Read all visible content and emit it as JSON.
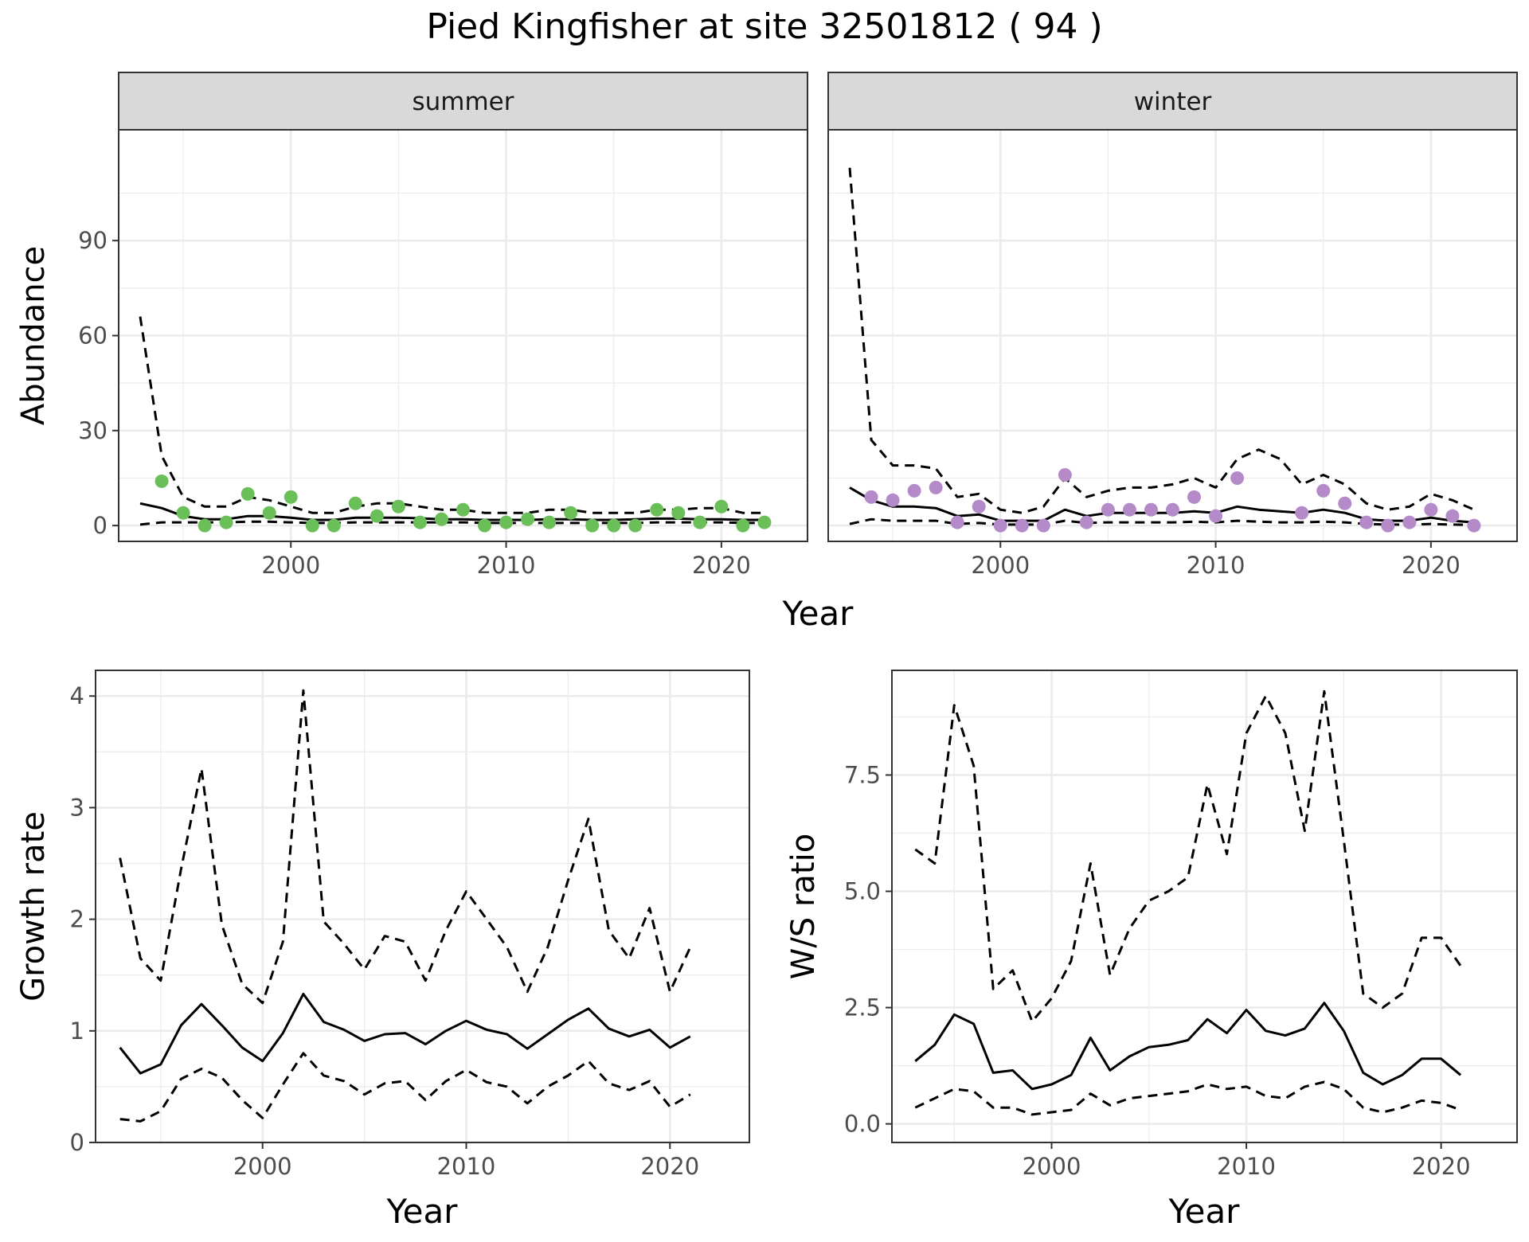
{
  "title": "Pied Kingfisher at site 32501812 ( 94 )",
  "colors": {
    "summer_points": "#6bbf59",
    "winter_points": "#b48ac9",
    "line": "#000000",
    "strip_bg": "#d9d9d9",
    "grid": "#ebebeb"
  },
  "chart_data": [
    {
      "type": "scatter",
      "facet": "summer",
      "xlabel": "Year",
      "ylabel": "Abundance",
      "xlim": [
        1992,
        2024
      ],
      "ylim": [
        -5,
        125
      ],
      "xticks": [
        2000,
        2010,
        2020
      ],
      "yticks": [
        0,
        30,
        60,
        90
      ],
      "grid": true,
      "points": {
        "x": [
          1994,
          1995,
          1996,
          1997,
          1998,
          1999,
          2000,
          2001,
          2002,
          2003,
          2004,
          2005,
          2006,
          2007,
          2008,
          2009,
          2010,
          2011,
          2012,
          2013,
          2014,
          2015,
          2016,
          2017,
          2018,
          2019,
          2020,
          2021,
          2022
        ],
        "y": [
          14,
          4,
          0,
          1,
          10,
          4,
          9,
          0,
          0,
          7,
          3,
          6,
          1,
          2,
          5,
          0,
          1,
          2,
          1,
          4,
          0,
          0,
          0,
          5,
          4,
          1,
          6,
          0,
          1
        ]
      },
      "series": [
        {
          "style": "solid",
          "x": [
            1993,
            1994,
            1995,
            1996,
            1997,
            1998,
            1999,
            2000,
            2001,
            2002,
            2003,
            2004,
            2005,
            2006,
            2007,
            2008,
            2009,
            2010,
            2011,
            2012,
            2013,
            2014,
            2015,
            2016,
            2017,
            2018,
            2019,
            2020,
            2021,
            2022
          ],
          "y": [
            7,
            5.5,
            3,
            2,
            2,
            3,
            3,
            2.5,
            1.8,
            1.8,
            2.5,
            2.5,
            2.5,
            2.3,
            2,
            2,
            1.8,
            1.8,
            1.8,
            2,
            2,
            1.8,
            1.8,
            2,
            2.2,
            2.2,
            2,
            2,
            1.8,
            1.8
          ]
        },
        {
          "style": "dashed",
          "x": [
            1993,
            1994,
            1995,
            1996,
            1997,
            1998,
            1999,
            2000,
            2001,
            2002,
            2003,
            2004,
            2005,
            2006,
            2007,
            2008,
            2009,
            2010,
            2011,
            2012,
            2013,
            2014,
            2015,
            2016,
            2017,
            2018,
            2019,
            2020,
            2021,
            2022
          ],
          "y": [
            66,
            22,
            9,
            6,
            6,
            9,
            8,
            6,
            4,
            4,
            6,
            7,
            7,
            6,
            5,
            5,
            4,
            4,
            4,
            5,
            5,
            4,
            4,
            4,
            5,
            5,
            5.5,
            5.5,
            4,
            4
          ]
        },
        {
          "style": "dashed",
          "x": [
            1993,
            1994,
            1995,
            1996,
            1997,
            1998,
            1999,
            2000,
            2001,
            2002,
            2003,
            2004,
            2005,
            2006,
            2007,
            2008,
            2009,
            2010,
            2011,
            2012,
            2013,
            2014,
            2015,
            2016,
            2017,
            2018,
            2019,
            2020,
            2021,
            2022
          ],
          "y": [
            0.3,
            1,
            1,
            1,
            1,
            1.2,
            1.2,
            1,
            0.8,
            0.8,
            1,
            1,
            1,
            1,
            1,
            1,
            0.8,
            0.8,
            0.8,
            0.8,
            0.8,
            0.8,
            0.8,
            0.8,
            1,
            1,
            1,
            1,
            0.8,
            0.8
          ]
        }
      ]
    },
    {
      "type": "scatter",
      "facet": "winter",
      "xlabel": "Year",
      "ylabel": "Abundance",
      "xlim": [
        1992,
        2024
      ],
      "ylim": [
        -5,
        125
      ],
      "xticks": [
        2000,
        2010,
        2020
      ],
      "yticks": [
        0,
        30,
        60,
        90
      ],
      "grid": true,
      "points": {
        "x": [
          1994,
          1995,
          1996,
          1997,
          1998,
          1999,
          2000,
          2001,
          2002,
          2003,
          2004,
          2005,
          2006,
          2007,
          2008,
          2009,
          2010,
          2011,
          2014,
          2015,
          2016,
          2017,
          2018,
          2019,
          2020,
          2021,
          2022
        ],
        "y": [
          9,
          8,
          11,
          12,
          1,
          6,
          0,
          0,
          0,
          16,
          1,
          5,
          5,
          5,
          5,
          9,
          3,
          15,
          4,
          11,
          7,
          1,
          0,
          1,
          5,
          3,
          0
        ]
      },
      "series": [
        {
          "style": "solid",
          "x": [
            1993,
            1994,
            1995,
            1996,
            1997,
            1998,
            1999,
            2000,
            2001,
            2002,
            2003,
            2004,
            2005,
            2006,
            2007,
            2008,
            2009,
            2010,
            2011,
            2012,
            2013,
            2014,
            2015,
            2016,
            2017,
            2018,
            2019,
            2020,
            2021,
            2022
          ],
          "y": [
            12,
            8,
            6,
            6,
            5.5,
            3,
            3.5,
            1.5,
            1.5,
            1.5,
            5,
            3,
            4,
            4,
            4,
            4,
            4.5,
            4,
            6,
            5,
            4.5,
            4,
            5,
            4,
            2,
            1.5,
            1.5,
            2.5,
            1.5,
            1
          ]
        },
        {
          "style": "dashed",
          "x": [
            1993,
            1994,
            1995,
            1996,
            1997,
            1998,
            1999,
            2000,
            2001,
            2002,
            2003,
            2004,
            2005,
            2006,
            2007,
            2008,
            2009,
            2010,
            2011,
            2012,
            2013,
            2014,
            2015,
            2016,
            2017,
            2018,
            2019,
            2020,
            2021,
            2022
          ],
          "y": [
            113,
            27,
            19,
            19,
            18,
            9,
            10,
            5,
            4,
            6,
            15,
            9,
            11,
            12,
            12,
            13,
            15,
            12,
            21,
            24,
            21,
            13,
            16,
            13,
            7,
            5,
            6,
            10,
            8,
            5
          ]
        },
        {
          "style": "dashed",
          "x": [
            1993,
            1994,
            1995,
            1996,
            1997,
            1998,
            1999,
            2000,
            2001,
            2002,
            2003,
            2004,
            2005,
            2006,
            2007,
            2008,
            2009,
            2010,
            2011,
            2012,
            2013,
            2014,
            2015,
            2016,
            2017,
            2018,
            2019,
            2020,
            2021,
            2022
          ],
          "y": [
            0.5,
            2,
            1.5,
            1.5,
            1.5,
            0.5,
            0.8,
            0.3,
            0.3,
            0.3,
            1.5,
            0.8,
            1,
            1,
            1,
            1,
            1.2,
            1,
            1.5,
            1.2,
            1,
            1,
            1.2,
            1,
            0.5,
            0.3,
            0.3,
            0.5,
            0.3,
            0.2
          ]
        }
      ]
    },
    {
      "type": "line",
      "xlabel": "Year",
      "ylabel": "Growth rate",
      "xlim": [
        1991.8,
        2023.9
      ],
      "ylim": [
        0,
        4.23
      ],
      "xticks": [
        2000,
        2010,
        2020
      ],
      "yticks": [
        0,
        1,
        2,
        3,
        4
      ],
      "grid": true,
      "series": [
        {
          "style": "solid",
          "x": [
            1993,
            1994,
            1995,
            1996,
            1997,
            1998,
            1999,
            2000,
            2001,
            2002,
            2003,
            2004,
            2005,
            2006,
            2007,
            2008,
            2009,
            2010,
            2011,
            2012,
            2013,
            2014,
            2015,
            2016,
            2017,
            2018,
            2019,
            2020,
            2021
          ],
          "y": [
            0.85,
            0.62,
            0.7,
            1.05,
            1.24,
            1.05,
            0.85,
            0.73,
            0.98,
            1.33,
            1.08,
            1.01,
            0.91,
            0.97,
            0.98,
            0.88,
            1.0,
            1.09,
            1.01,
            0.97,
            0.84,
            0.97,
            1.1,
            1.2,
            1.02,
            0.95,
            1.01,
            0.85,
            0.95
          ]
        },
        {
          "style": "dashed",
          "x": [
            1993,
            1994,
            1995,
            1996,
            1997,
            1998,
            1999,
            2000,
            2001,
            2002,
            2003,
            2004,
            2005,
            2006,
            2007,
            2008,
            2009,
            2010,
            2011,
            2012,
            2013,
            2014,
            2015,
            2016,
            2017,
            2018,
            2019,
            2020,
            2021
          ],
          "y": [
            2.55,
            1.65,
            1.45,
            2.45,
            3.35,
            1.95,
            1.42,
            1.25,
            1.8,
            4.05,
            1.98,
            1.78,
            1.55,
            1.85,
            1.8,
            1.45,
            1.9,
            2.25,
            2.0,
            1.75,
            1.35,
            1.75,
            2.35,
            2.9,
            1.9,
            1.65,
            2.1,
            1.35,
            1.75
          ]
        },
        {
          "style": "dashed",
          "x": [
            1993,
            1994,
            1995,
            1996,
            1997,
            1998,
            1999,
            2000,
            2001,
            2002,
            2003,
            2004,
            2005,
            2006,
            2007,
            2008,
            2009,
            2010,
            2011,
            2012,
            2013,
            2014,
            2015,
            2016,
            2017,
            2018,
            2019,
            2020,
            2021
          ],
          "y": [
            0.21,
            0.19,
            0.28,
            0.57,
            0.66,
            0.58,
            0.38,
            0.22,
            0.52,
            0.8,
            0.6,
            0.55,
            0.43,
            0.53,
            0.55,
            0.38,
            0.55,
            0.65,
            0.54,
            0.5,
            0.35,
            0.5,
            0.6,
            0.73,
            0.53,
            0.47,
            0.55,
            0.32,
            0.43
          ]
        }
      ]
    },
    {
      "type": "line",
      "xlabel": "Year",
      "ylabel": "W/S ratio",
      "xlim": [
        1991.8,
        2023.9
      ],
      "ylim": [
        -0.4,
        9.75
      ],
      "xticks": [
        2000,
        2010,
        2020
      ],
      "yticks": [
        0.0,
        2.5,
        5.0,
        7.5
      ],
      "ytick_labels": [
        "0.0",
        "2.5",
        "5.0",
        "7.5"
      ],
      "grid": true,
      "series": [
        {
          "style": "solid",
          "x": [
            1993,
            1994,
            1995,
            1996,
            1997,
            1998,
            1999,
            2000,
            2001,
            2002,
            2003,
            2004,
            2005,
            2006,
            2007,
            2008,
            2009,
            2010,
            2011,
            2012,
            2013,
            2014,
            2015,
            2016,
            2017,
            2018,
            2019,
            2020,
            2021
          ],
          "y": [
            1.35,
            1.7,
            2.35,
            2.15,
            1.1,
            1.15,
            0.75,
            0.85,
            1.05,
            1.85,
            1.15,
            1.45,
            1.65,
            1.7,
            1.8,
            2.25,
            1.95,
            2.45,
            2.0,
            1.9,
            2.05,
            2.6,
            2.0,
            1.1,
            0.85,
            1.05,
            1.4,
            1.4,
            1.05
          ]
        },
        {
          "style": "dashed",
          "x": [
            1993,
            1994,
            1995,
            1996,
            1997,
            1998,
            1999,
            2000,
            2001,
            2002,
            2003,
            2004,
            2005,
            2006,
            2007,
            2008,
            2009,
            2010,
            2011,
            2012,
            2013,
            2014,
            2015,
            2016,
            2017,
            2018,
            2019,
            2020,
            2021
          ],
          "y": [
            5.9,
            5.6,
            9.0,
            7.7,
            2.9,
            3.3,
            2.2,
            2.7,
            3.5,
            5.6,
            3.2,
            4.2,
            4.8,
            5.0,
            5.3,
            7.3,
            5.8,
            8.4,
            9.2,
            8.4,
            6.3,
            9.3,
            6.1,
            2.8,
            2.5,
            2.8,
            4.0,
            4.0,
            3.4
          ]
        },
        {
          "style": "dashed",
          "x": [
            1993,
            1994,
            1995,
            1996,
            1997,
            1998,
            1999,
            2000,
            2001,
            2002,
            2003,
            2004,
            2005,
            2006,
            2007,
            2008,
            2009,
            2010,
            2011,
            2012,
            2013,
            2014,
            2015,
            2016,
            2017,
            2018,
            2019,
            2020,
            2021
          ],
          "y": [
            0.35,
            0.55,
            0.75,
            0.7,
            0.35,
            0.35,
            0.2,
            0.25,
            0.3,
            0.65,
            0.4,
            0.55,
            0.6,
            0.65,
            0.7,
            0.85,
            0.75,
            0.8,
            0.6,
            0.55,
            0.8,
            0.9,
            0.75,
            0.35,
            0.25,
            0.35,
            0.5,
            0.45,
            0.3
          ]
        }
      ]
    }
  ]
}
